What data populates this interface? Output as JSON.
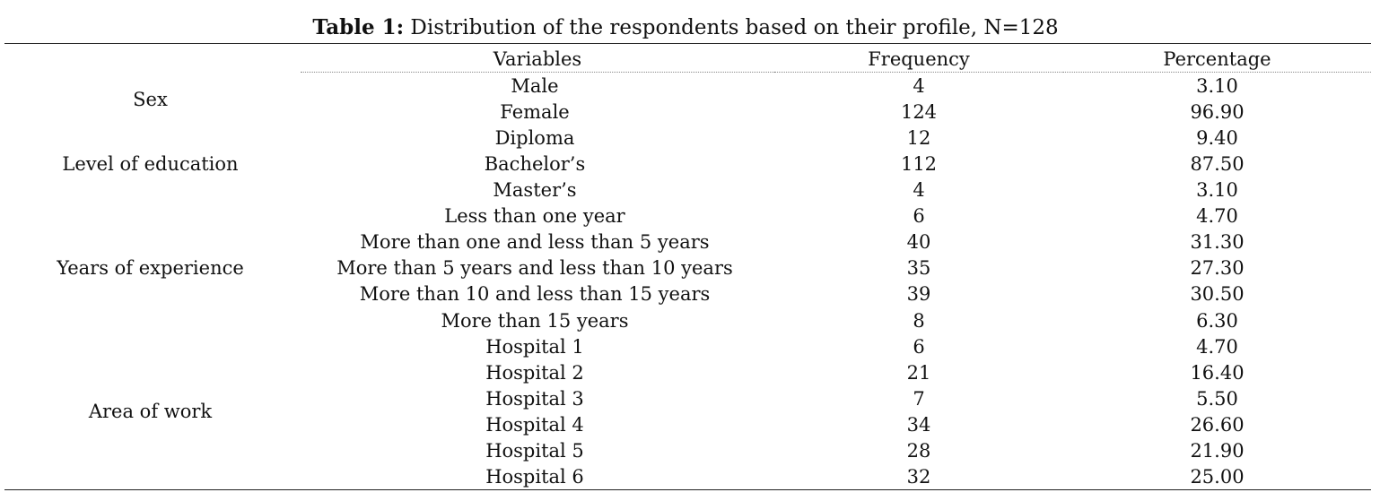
{
  "caption": {
    "label": "Table 1:",
    "text": " Distribution of the respondents based on their profile, N=128"
  },
  "headers": {
    "variables": "Variables",
    "frequency": "Frequency",
    "percentage": "Percentage"
  },
  "groups": [
    {
      "name": "Sex",
      "rows": [
        {
          "label": "Male",
          "frequency": "4",
          "percentage": "3.10"
        },
        {
          "label": "Female",
          "frequency": "124",
          "percentage": "96.90"
        }
      ]
    },
    {
      "name": "Level of education",
      "rows": [
        {
          "label": "Diploma",
          "frequency": "12",
          "percentage": "9.40"
        },
        {
          "label": "Bachelor’s",
          "frequency": "112",
          "percentage": "87.50"
        },
        {
          "label": "Master’s",
          "frequency": "4",
          "percentage": "3.10"
        }
      ]
    },
    {
      "name": "Years of experience",
      "rows": [
        {
          "label": "Less than one year",
          "frequency": "6",
          "percentage": "4.70"
        },
        {
          "label": "More than one and less than 5 years",
          "frequency": "40",
          "percentage": "31.30"
        },
        {
          "label": "More than 5 years and less than 10 years",
          "frequency": "35",
          "percentage": "27.30"
        },
        {
          "label": "More than 10 and less than 15 years",
          "frequency": "39",
          "percentage": "30.50"
        },
        {
          "label": "More than 15 years",
          "frequency": "8",
          "percentage": "6.30"
        }
      ]
    },
    {
      "name": "Area of work",
      "rows": [
        {
          "label": "Hospital 1",
          "frequency": "6",
          "percentage": "4.70"
        },
        {
          "label": "Hospital 2",
          "frequency": "21",
          "percentage": "16.40"
        },
        {
          "label": "Hospital 3",
          "frequency": "7",
          "percentage": "5.50"
        },
        {
          "label": "Hospital 4",
          "frequency": "34",
          "percentage": "26.60"
        },
        {
          "label": "Hospital 5",
          "frequency": "28",
          "percentage": "21.90"
        },
        {
          "label": "Hospital 6",
          "frequency": "32",
          "percentage": "25.00"
        }
      ]
    }
  ]
}
